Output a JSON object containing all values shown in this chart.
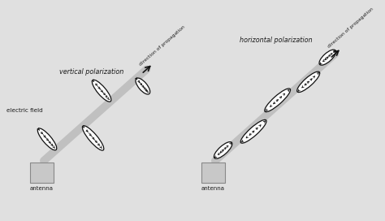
{
  "bg_color": "#e0e0e0",
  "text_color": "#1a1a1a",
  "antenna_color": "#c8c8c8",
  "antenna_edge": "#888888",
  "wave_color": "#111111",
  "rod_color": "#c0c0c0",
  "title_vertical": "vertical polarization",
  "title_horizontal": "horizontal polarization",
  "label_electric": "electric field",
  "label_antenna": "antenna",
  "label_propagation": "direction of propagation",
  "figsize": [
    4.74,
    2.72
  ],
  "dpi": 100
}
